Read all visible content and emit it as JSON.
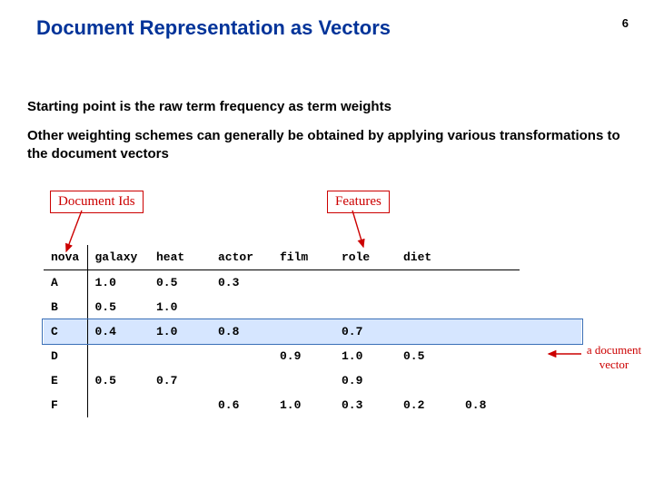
{
  "page_number": "6",
  "title": "Document Representation as Vectors",
  "paragraphs": [
    "Starting point is the raw term frequency as term weights",
    "Other weighting schemes can generally be obtained by applying various transformations to the document vectors"
  ],
  "labels": {
    "doc_ids": "Document Ids",
    "features": "Features",
    "doc_vector": "a document vector"
  },
  "table": {
    "columns": [
      "nova",
      "galaxy",
      "heat",
      "actor",
      "film",
      "role",
      "diet",
      ""
    ],
    "rows": [
      {
        "id": "A",
        "cells": [
          "1.0",
          "0.5",
          "0.3",
          "",
          "",
          "",
          ""
        ]
      },
      {
        "id": "B",
        "cells": [
          "0.5",
          "1.0",
          "",
          "",
          "",
          "",
          ""
        ]
      },
      {
        "id": "C",
        "cells": [
          "0.4",
          "1.0",
          "0.8",
          "",
          "0.7",
          "",
          ""
        ],
        "highlight": true
      },
      {
        "id": "D",
        "cells": [
          "",
          "",
          "",
          "0.9",
          "1.0",
          "0.5",
          ""
        ]
      },
      {
        "id": "E",
        "cells": [
          "0.5",
          "0.7",
          "",
          "",
          "0.9",
          "",
          ""
        ]
      },
      {
        "id": "F",
        "cells": [
          "",
          "",
          "0.6",
          "1.0",
          "0.3",
          "0.2",
          "0.8"
        ]
      }
    ]
  },
  "colors": {
    "title": "#003399",
    "accent": "#cc0000",
    "highlight_fill": "#d6e6ff",
    "highlight_border": "#3a6fb7"
  }
}
